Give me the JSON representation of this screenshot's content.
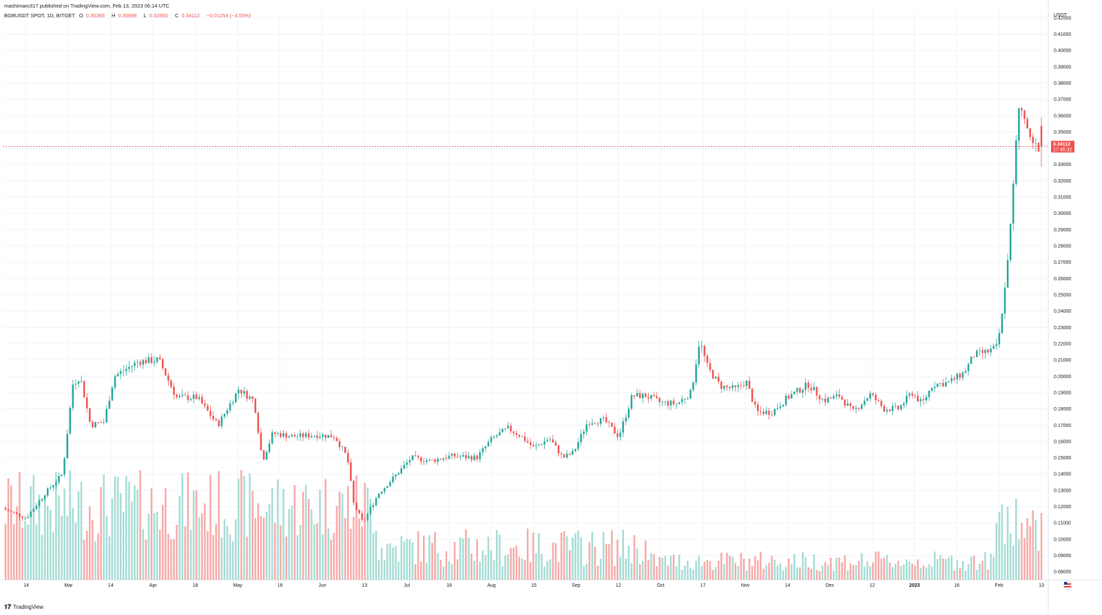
{
  "header": {
    "published": "mashimaro317 published on TradingView.com, Feb 13, 2023 06:14 UTC",
    "symbol": "BGBUSDT SPOT, 1D, BITGET",
    "open_label": "O",
    "open": "0.35366",
    "high_label": "H",
    "high": "0.35898",
    "low_label": "L",
    "low": "0.32850",
    "close_label": "C",
    "close": "0.34112",
    "change": "−0.01254 (−3.55%)"
  },
  "price_axis": {
    "currency": "USDT",
    "ticks": [
      "0.42000",
      "0.41000",
      "0.40000",
      "0.39000",
      "0.38000",
      "0.37000",
      "0.36000",
      "0.35000",
      "0.34000",
      "0.33000",
      "0.32000",
      "0.31000",
      "0.30000",
      "0.29000",
      "0.28000",
      "0.27000",
      "0.26000",
      "0.25000",
      "0.24000",
      "0.23000",
      "0.22000",
      "0.21000",
      "0.20000",
      "0.19000",
      "0.18000",
      "0.17000",
      "0.16000",
      "0.15000",
      "0.14000",
      "0.13000",
      "0.12000",
      "0.11000",
      "0.10000",
      "0.09000",
      "0.08000"
    ],
    "last_price": "0.34112",
    "countdown": "17:45:32"
  },
  "time_axis": {
    "ticks": [
      "14",
      "Mar",
      "14",
      "Apr",
      "18",
      "May",
      "16",
      "Jun",
      "13",
      "Jul",
      "18",
      "Aug",
      "15",
      "Sep",
      "12",
      "Oct",
      "17",
      "Nov",
      "14",
      "Dec",
      "12",
      "2023",
      "16",
      "Feb",
      "13"
    ]
  },
  "branding": {
    "logo": "TradingView"
  },
  "colors": {
    "up": "#26a69a",
    "down": "#ef5350",
    "up_volume": "#a5dcd4",
    "down_volume": "#f7a9a7",
    "grid": "#f0f3fa"
  },
  "chart_data": {
    "type": "candlestick",
    "symbol": "BGBUSDT",
    "exchange": "BITGET",
    "interval": "1D",
    "y_unit": "USDT",
    "ylim": [
      0.075,
      0.425
    ],
    "x_ticks": [
      "14",
      "Mar",
      "14",
      "Apr",
      "18",
      "May",
      "16",
      "Jun",
      "13",
      "Jul",
      "18",
      "Aug",
      "15",
      "Sep",
      "12",
      "Oct",
      "17",
      "Nov",
      "14",
      "Dec",
      "12",
      "2023",
      "16",
      "Feb",
      "13"
    ],
    "last": {
      "open": 0.35366,
      "high": 0.35898,
      "low": 0.3285,
      "close": 0.34112,
      "change": -0.01254,
      "change_pct": -3.55
    },
    "close_path": [
      {
        "t": 0.0,
        "close": 0.118
      },
      {
        "t": 0.02,
        "close": 0.113
      },
      {
        "t": 0.038,
        "close": 0.128
      },
      {
        "t": 0.055,
        "close": 0.14
      },
      {
        "t": 0.065,
        "close": 0.195
      },
      {
        "t": 0.072,
        "close": 0.2
      },
      {
        "t": 0.082,
        "close": 0.17
      },
      {
        "t": 0.095,
        "close": 0.172
      },
      {
        "t": 0.105,
        "close": 0.2
      },
      {
        "t": 0.128,
        "close": 0.209
      },
      {
        "t": 0.148,
        "close": 0.21
      },
      {
        "t": 0.165,
        "close": 0.187
      },
      {
        "t": 0.185,
        "close": 0.187
      },
      {
        "t": 0.205,
        "close": 0.17
      },
      {
        "t": 0.225,
        "close": 0.192
      },
      {
        "t": 0.24,
        "close": 0.185
      },
      {
        "t": 0.248,
        "close": 0.148
      },
      {
        "t": 0.258,
        "close": 0.165
      },
      {
        "t": 0.278,
        "close": 0.163
      },
      {
        "t": 0.3,
        "close": 0.164
      },
      {
        "t": 0.318,
        "close": 0.163
      },
      {
        "t": 0.33,
        "close": 0.15
      },
      {
        "t": 0.336,
        "close": 0.122
      },
      {
        "t": 0.345,
        "close": 0.11
      },
      {
        "t": 0.36,
        "close": 0.128
      },
      {
        "t": 0.375,
        "close": 0.138
      },
      {
        "t": 0.392,
        "close": 0.15
      },
      {
        "t": 0.41,
        "close": 0.148
      },
      {
        "t": 0.43,
        "close": 0.151
      },
      {
        "t": 0.455,
        "close": 0.15
      },
      {
        "t": 0.47,
        "close": 0.162
      },
      {
        "t": 0.485,
        "close": 0.168
      },
      {
        "t": 0.498,
        "close": 0.163
      },
      {
        "t": 0.51,
        "close": 0.156
      },
      {
        "t": 0.525,
        "close": 0.162
      },
      {
        "t": 0.538,
        "close": 0.15
      },
      {
        "t": 0.548,
        "close": 0.153
      },
      {
        "t": 0.562,
        "close": 0.172
      },
      {
        "t": 0.578,
        "close": 0.173
      },
      {
        "t": 0.592,
        "close": 0.163
      },
      {
        "t": 0.605,
        "close": 0.188
      },
      {
        "t": 0.618,
        "close": 0.188
      },
      {
        "t": 0.632,
        "close": 0.184
      },
      {
        "t": 0.648,
        "close": 0.183
      },
      {
        "t": 0.662,
        "close": 0.19
      },
      {
        "t": 0.67,
        "close": 0.222
      },
      {
        "t": 0.678,
        "close": 0.205
      },
      {
        "t": 0.69,
        "close": 0.194
      },
      {
        "t": 0.705,
        "close": 0.192
      },
      {
        "t": 0.715,
        "close": 0.197
      },
      {
        "t": 0.725,
        "close": 0.178
      },
      {
        "t": 0.74,
        "close": 0.178
      },
      {
        "t": 0.755,
        "close": 0.187
      },
      {
        "t": 0.775,
        "close": 0.195
      },
      {
        "t": 0.79,
        "close": 0.185
      },
      {
        "t": 0.805,
        "close": 0.188
      },
      {
        "t": 0.818,
        "close": 0.178
      },
      {
        "t": 0.835,
        "close": 0.189
      },
      {
        "t": 0.848,
        "close": 0.18
      },
      {
        "t": 0.862,
        "close": 0.18
      },
      {
        "t": 0.875,
        "close": 0.19
      },
      {
        "t": 0.885,
        "close": 0.183
      },
      {
        "t": 0.895,
        "close": 0.195
      },
      {
        "t": 0.91,
        "close": 0.196
      },
      {
        "t": 0.925,
        "close": 0.202
      },
      {
        "t": 0.935,
        "close": 0.213
      },
      {
        "t": 0.948,
        "close": 0.215
      },
      {
        "t": 0.958,
        "close": 0.218
      },
      {
        "t": 0.964,
        "close": 0.25
      },
      {
        "t": 0.97,
        "close": 0.29
      },
      {
        "t": 0.978,
        "close": 0.365
      },
      {
        "t": 0.986,
        "close": 0.354
      },
      {
        "t": 0.99,
        "close": 0.341
      }
    ]
  }
}
